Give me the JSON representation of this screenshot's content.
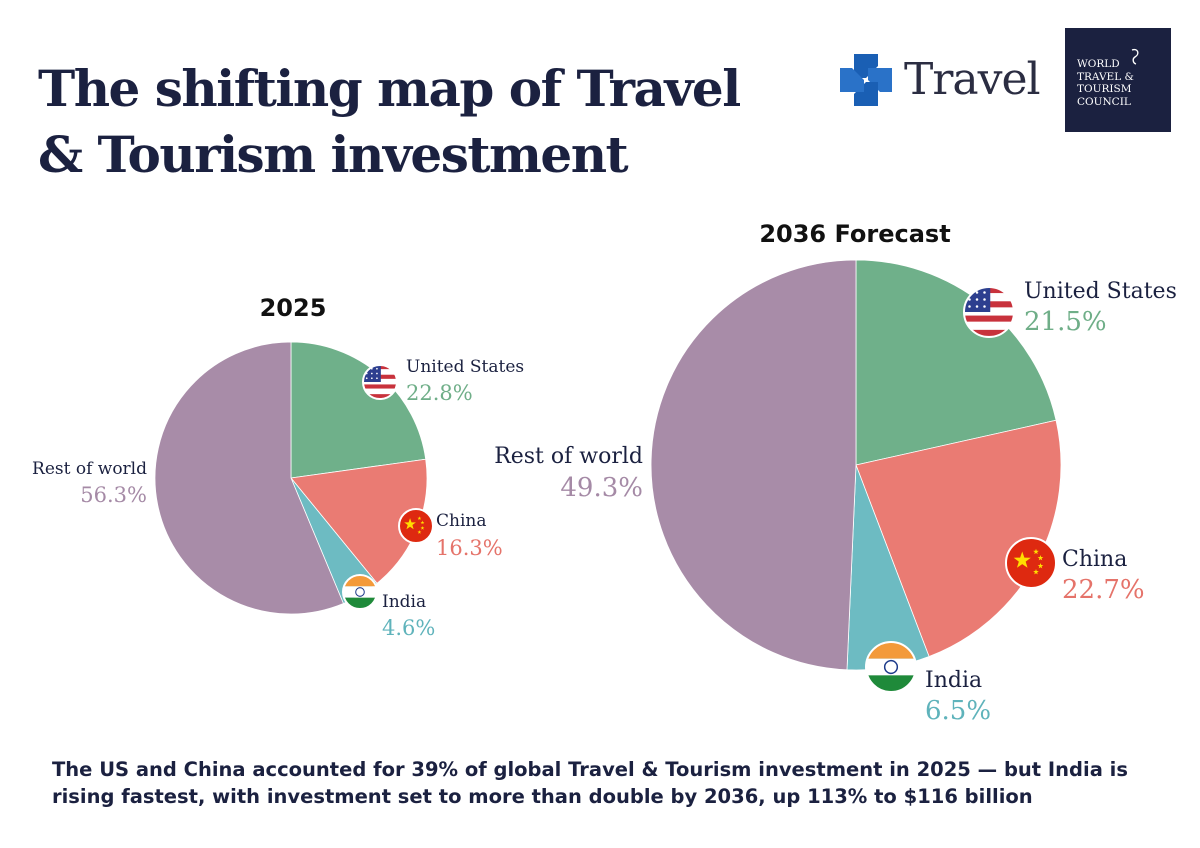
{
  "title": "The shifting map of Travel & Tourism investment",
  "logos": {
    "chase_text": "Travel",
    "wttc_lines": [
      "WORLD",
      "TRAVEL &",
      "TOURISM",
      "COUNCIL"
    ]
  },
  "colors": {
    "United States": "#6fb08a",
    "China": "#ea7b73",
    "India": "#6dbbc2",
    "Rest of world": "#a88ca8",
    "value_United States": "#6fae88",
    "value_China": "#e5736a",
    "value_India": "#5fb3bb",
    "value_Rest of world": "#a58aa6"
  },
  "chart_data": [
    {
      "type": "pie",
      "title": "2025",
      "categories": [
        "United States",
        "China",
        "India",
        "Rest of world"
      ],
      "values": [
        22.8,
        16.3,
        4.6,
        56.3
      ],
      "labels": [
        "22.8%",
        "16.3%",
        "4.6%",
        "56.3%"
      ],
      "flags": [
        "us-flag-icon",
        "china-flag-icon",
        "india-flag-icon",
        null
      ]
    },
    {
      "type": "pie",
      "title": "2036 Forecast",
      "categories": [
        "United States",
        "China",
        "India",
        "Rest of world"
      ],
      "values": [
        21.5,
        22.7,
        6.5,
        49.3
      ],
      "labels": [
        "21.5%",
        "22.7%",
        "6.5%",
        "49.3%"
      ],
      "flags": [
        "us-flag-icon",
        "china-flag-icon",
        "india-flag-icon",
        null
      ]
    }
  ],
  "footer": "The US and China accounted for 39% of global Travel & Tourism investment in 2025 — but India is rising fastest, with investment set to more than double by 2036, up 113% to $116 billion"
}
